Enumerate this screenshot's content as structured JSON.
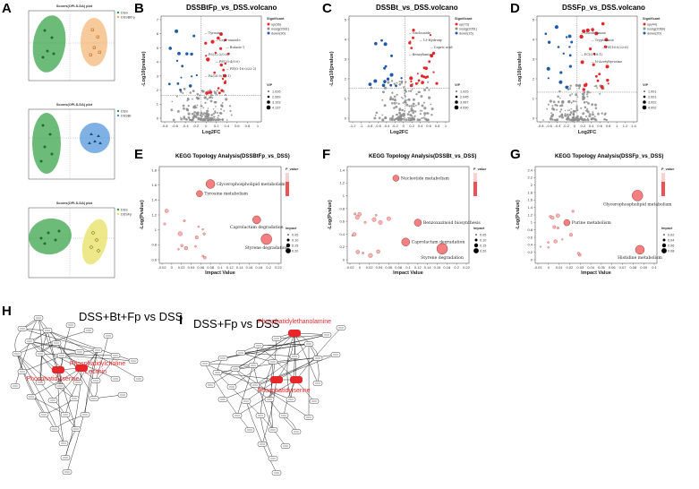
{
  "letters": {
    "A": "A",
    "B": "B",
    "C": "C",
    "D": "D",
    "E": "E",
    "F": "F",
    "G": "G",
    "H": "H",
    "I": "I"
  },
  "opls": [
    {
      "title": "Scores(OPLS-DA) plot",
      "legend": [
        "DSS",
        "DSSBtFp"
      ],
      "colors": [
        "#2e9e3e",
        "#f2a65a"
      ]
    },
    {
      "title": "Scores(OPLS-DA) plot",
      "legend": [
        "DSS",
        "DSSBt"
      ],
      "colors": [
        "#2e9e3e",
        "#4a90d9"
      ]
    },
    {
      "title": "Scores(OPLS-DA) plot",
      "legend": [
        "DSS",
        "DSSFp"
      ],
      "colors": [
        "#2e9e3e",
        "#e6e05a"
      ]
    }
  ],
  "volcano": [
    {
      "title": "DSSBtFp_vs_DSS.volcano",
      "xlabel": "Log2FC",
      "ylabel": "-Log10(pvalue)",
      "legend_title": "Significant",
      "legend": [
        "up(36)",
        "nosig(2661)",
        "down(30)"
      ],
      "vip_title": "VIP",
      "vip_values": [
        "1.026",
        "2.069",
        "3.103",
        "4.137"
      ],
      "xticks": [
        "-0.8",
        "-0.6",
        "-0.4",
        "-0.2",
        "0",
        "0.2",
        "0.4",
        "0.6",
        "0.8",
        "1"
      ],
      "yticks": [
        "0",
        "1",
        "2",
        "3",
        "4",
        "5",
        "6",
        "7"
      ],
      "annotations": [
        "Tyrosine",
        "Capr-oxazole",
        "Butane-1",
        "PS(32:2/0:0)",
        "PE(20:4/0:0)",
        "PE(O-16:0/22:2)",
        "PA(16:0/18:1)"
      ]
    },
    {
      "title": "DSSBt_vs_DSS.volcano",
      "xlabel": "Log2FC",
      "ylabel": "-Log10(pvalue)",
      "legend_title": "Significant",
      "legend": [
        "up(73)",
        "nosig(2051)",
        "down(15)"
      ],
      "vip_title": "VIP",
      "vip_values": [
        "1.025",
        "2.045",
        "3.067",
        "4.090"
      ],
      "xticks": [
        "-1.2",
        "-1",
        "-0.8",
        "-0.6",
        "-0.4",
        "-0.2",
        "0",
        "0.2",
        "0.4",
        "0.6",
        "0.8",
        "1"
      ],
      "yticks": [
        "0",
        "1",
        "2",
        "3",
        "4",
        "5"
      ],
      "annotations": [
        "Nucleoside",
        "13-Hydroxy",
        "Capric acid",
        "Benzylamine"
      ]
    },
    {
      "title": "DSSFp_vs_DSS.volcano",
      "xlabel": "Log2FC",
      "ylabel": "-Log10(pvalue)",
      "legend_title": "Significant",
      "legend": [
        "up(44)",
        "nosig(2069)",
        "down(20)"
      ],
      "vip_title": "VIP",
      "vip_values": [
        "1.001",
        "2.001",
        "3.002",
        "4.002"
      ],
      "xticks": [
        "-0.8",
        "-0.6",
        "-0.4",
        "-0.2",
        "0",
        "0.2",
        "0.4",
        "0.6",
        "0.8",
        "1",
        "1.2",
        "1.4"
      ],
      "yticks": [
        "0",
        "1",
        "2",
        "3",
        "4",
        "5"
      ],
      "annotations": [
        "Theobromine",
        "Tryptamine",
        "PE(16:0/22:6)",
        "PC(O-18:1)",
        "N-Acetyltyrosine"
      ]
    }
  ],
  "kegg": [
    {
      "title": "KEGG Topology Analysis(DSSBtFp_vs_DSS)",
      "xlabel": "Impact Value",
      "ylabel": "-Log(Pvalue)",
      "legend_title": "P_value",
      "impact_title": "Impact",
      "impact_values": [
        "0.05",
        "0.10",
        "0.15",
        "0.20"
      ],
      "xticks": [
        "-0.02",
        "0",
        "0.02",
        "0.04",
        "0.06",
        "0.08",
        "0.1",
        "0.12",
        "0.14",
        "0.16",
        "0.18",
        "0.2",
        "0.22"
      ],
      "yticks": [
        "0.6",
        "0.8",
        "1",
        "1.2",
        "1.4",
        "1.6",
        "1.8"
      ],
      "labels": [
        "Glycerophospholipid metabolism",
        "Tyrosine metabolism",
        "Caprolactam degradation",
        "Styrene degradation"
      ]
    },
    {
      "title": "KEGG Topology Analysis(DSSBt_vs_DSS)",
      "xlabel": "Impact Value",
      "ylabel": "-Log(Pvalue)",
      "legend_title": "P_value",
      "impact_title": "Impact",
      "impact_values": [
        "0.05",
        "0.10",
        "0.15",
        "0.20"
      ],
      "xticks": [
        "-0.02",
        "0",
        "0.02",
        "0.04",
        "0.06",
        "0.08",
        "0.1",
        "0.12",
        "0.14",
        "0.16",
        "0.18",
        "0.2",
        "0.22"
      ],
      "yticks": [
        "0",
        "0.2",
        "0.4",
        "0.6",
        "0.8",
        "1",
        "1.2",
        "1.4"
      ],
      "labels": [
        "Nucleotide metabolism",
        "Benzoxazinoid biosynthesis",
        "Caprolactam degradation",
        "Styrene degradation"
      ]
    },
    {
      "title": "KEGG Topology Analysis(DSSFp_vs_DSS)",
      "xlabel": "Impact Value",
      "ylabel": "-Log(Pvalue)",
      "legend_title": "P_value",
      "impact_title": "Impact",
      "impact_values": [
        "0.02",
        "0.04",
        "0.06",
        "0.08"
      ],
      "xticks": [
        "-0.01",
        "0",
        "0.01",
        "0.02",
        "0.03",
        "0.04",
        "0.05",
        "0.06",
        "0.07",
        "0.08",
        "0.09",
        "0.1"
      ],
      "yticks": [
        "0",
        "0.2",
        "0.4",
        "0.6",
        "0.8",
        "1",
        "1.2",
        "1.4",
        "1.6",
        "1.8",
        "2",
        "2.2",
        "2.4"
      ],
      "labels": [
        "Glycerophospholipid metabolism",
        "Purine metabolism",
        "Histidine metabolism"
      ]
    }
  ],
  "network_h": {
    "title": "DSS+Bt+Fp vs DSS",
    "hubs": [
      "Phosphatidylserine",
      "Phosphatidylcholine",
      "Lecithin"
    ]
  },
  "network_i": {
    "title": "DSS+Fp vs DSS",
    "hubs": [
      "Phosphatidylethanolamine",
      "Phosphatidylserine"
    ]
  }
}
